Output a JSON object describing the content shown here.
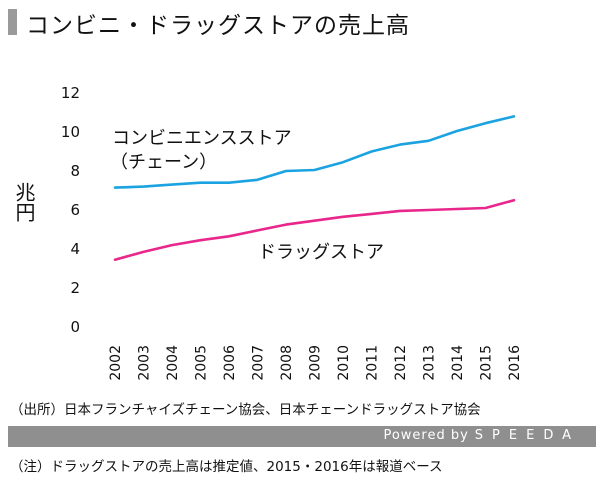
{
  "header": {
    "title": "コンビニ・ドラッグストアの売上高"
  },
  "chart_data": {
    "type": "line",
    "title": "コンビニ・ドラッグストアの売上高",
    "ylabel": "兆円",
    "xlabel": "",
    "ylim": [
      0,
      12
    ],
    "yticks": [
      0,
      2,
      4,
      6,
      8,
      10,
      12
    ],
    "categories": [
      "2002",
      "2003",
      "2004",
      "2005",
      "2006",
      "2007",
      "2008",
      "2009",
      "2010",
      "2011",
      "2012",
      "2013",
      "2014",
      "2015",
      "2016"
    ],
    "series": [
      {
        "name": "コンビニエンスストア（チェーン）",
        "color": "#1aa3e0",
        "values": [
          7.1,
          7.15,
          7.25,
          7.35,
          7.35,
          7.5,
          7.95,
          8.0,
          8.4,
          8.95,
          9.3,
          9.5,
          10.0,
          10.4,
          10.75
        ]
      },
      {
        "name": "ドラッグストア",
        "color": "#e9268b",
        "values": [
          3.4,
          3.8,
          4.15,
          4.4,
          4.6,
          4.9,
          5.2,
          5.4,
          5.6,
          5.75,
          5.9,
          5.95,
          6.0,
          6.05,
          6.45
        ]
      }
    ],
    "annotations": {
      "konbini_line1": "コンビニエンスストア",
      "konbini_line2": "（チェーン）",
      "drug": "ドラッグストア"
    },
    "grid": false,
    "legend": "inline"
  },
  "footer": {
    "source": "（出所）日本フランチャイズチェーン協会、日本チェーンドラッグストア協会",
    "powered_by": "Powered by",
    "brand": "SPEEDA",
    "note": "（注）ドラッグストアの売上高は推定値、2015・2016年は報道ベース"
  }
}
